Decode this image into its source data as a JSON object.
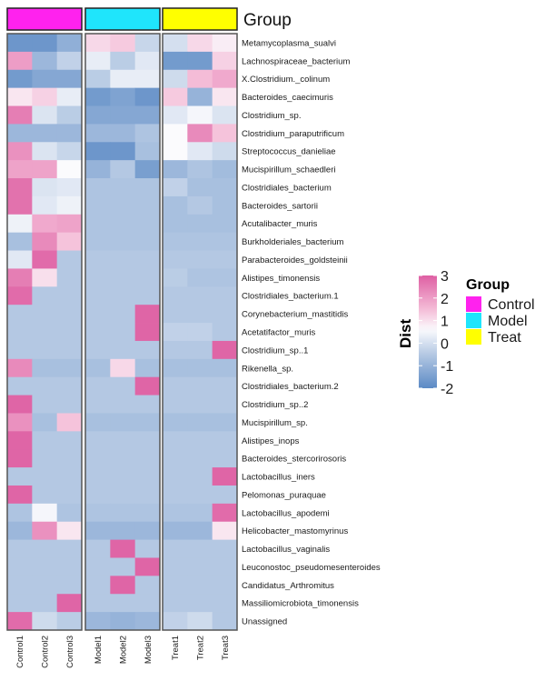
{
  "chart_data": {
    "type": "heatmap",
    "title": "",
    "annotation_title": "Group",
    "columns": [
      "Control1",
      "Control2",
      "Control3",
      "Model1",
      "Model2",
      "Model3",
      "Treat1",
      "Treat2",
      "Treat3"
    ],
    "column_groups": [
      "Control",
      "Control",
      "Control",
      "Model",
      "Model",
      "Model",
      "Treat",
      "Treat",
      "Treat"
    ],
    "group_splits": [
      {
        "name": "Control",
        "columns": [
          "Control1",
          "Control2",
          "Control3"
        ]
      },
      {
        "name": "Model",
        "columns": [
          "Model1",
          "Model2",
          "Model3"
        ]
      },
      {
        "name": "Treat",
        "columns": [
          "Treat1",
          "Treat2",
          "Treat3"
        ]
      }
    ],
    "rows": [
      "Metamycoplasma_sualvi",
      "Lachnospiraceae_bacterium",
      "X.Clostridium._colinum",
      "Bacteroides_caecimuris",
      "Clostridium_sp.",
      "Clostridium_paraputrificum",
      "Streptococcus_danieliae",
      "Mucispirillum_schaedleri",
      "Clostridiales_bacterium",
      "Bacteroides_sartorii",
      "Acutalibacter_muris",
      "Burkholderiales_bacterium",
      "Parabacteroides_goldsteinii",
      "Alistipes_timonensis",
      "Clostridiales_bacterium.1",
      "Corynebacterium_mastitidis",
      "Acetatifactor_muris",
      "Clostridium_sp..1",
      "Rikenella_sp.",
      "Clostridiales_bacterium.2",
      "Clostridium_sp..2",
      "Mucispirillum_sp.",
      "Alistipes_inops",
      "Bacteroides_stercorirosoris",
      "Lactobacillus_iners",
      "Pelomonas_puraquae",
      "Lactobacillus_apodemi",
      "Helicobacter_mastomyrinus",
      "Lactobacillus_vaginalis",
      "Leuconostoc_pseudomesenteroides",
      "Candidatus_Arthromitus",
      "Massiliomicrobiota_timonensis",
      "Unassigned"
    ],
    "values": [
      [
        -1.7,
        -1.7,
        -1.1,
        1.1,
        1.3,
        -0.2,
        0.0,
        1.1,
        0.8
      ],
      [
        2.0,
        -0.9,
        -0.3,
        0.3,
        -0.4,
        0.2,
        -1.6,
        -1.6,
        1.2
      ],
      [
        -1.6,
        -1.3,
        -1.3,
        -0.4,
        0.3,
        0.3,
        -0.1,
        1.5,
        1.8
      ],
      [
        0.9,
        1.2,
        0.3,
        -1.6,
        -1.4,
        -1.7,
        1.3,
        -1.0,
        0.9
      ],
      [
        2.5,
        0.1,
        -0.4,
        -1.3,
        -1.3,
        -1.3,
        0.2,
        0.5,
        0.1
      ],
      [
        -0.9,
        -0.9,
        -0.9,
        -0.9,
        -0.9,
        -0.6,
        0.6,
        2.3,
        1.4
      ],
      [
        2.2,
        0.1,
        -0.2,
        -1.7,
        -1.7,
        -0.7,
        0.6,
        0.2,
        -0.1
      ],
      [
        1.9,
        1.9,
        0.6,
        -1.0,
        -0.5,
        -1.5,
        -0.9,
        -0.6,
        -0.8
      ],
      [
        2.7,
        0.1,
        0.2,
        -0.6,
        -0.6,
        -0.6,
        -0.3,
        -0.7,
        -0.7
      ],
      [
        2.7,
        0.2,
        0.4,
        -0.6,
        -0.6,
        -0.6,
        -0.7,
        -0.5,
        -0.7
      ],
      [
        0.4,
        1.8,
        1.9,
        -0.6,
        -0.6,
        -0.6,
        -0.7,
        -0.7,
        -0.7
      ],
      [
        -0.7,
        2.3,
        1.4,
        -0.6,
        -0.6,
        -0.6,
        -0.6,
        -0.6,
        -0.6
      ],
      [
        0.2,
        2.8,
        -0.5,
        -0.5,
        -0.5,
        -0.5,
        -0.5,
        -0.5,
        -0.5
      ],
      [
        2.5,
        1.0,
        -0.5,
        -0.5,
        -0.5,
        -0.5,
        -0.4,
        -0.6,
        -0.6
      ],
      [
        2.8,
        -0.5,
        -0.5,
        -0.5,
        -0.5,
        -0.5,
        -0.5,
        -0.5,
        -0.5
      ],
      [
        -0.5,
        -0.5,
        -0.5,
        -0.5,
        -0.5,
        2.9,
        -0.5,
        -0.5,
        -0.5
      ],
      [
        -0.5,
        -0.5,
        -0.5,
        -0.5,
        -0.5,
        2.9,
        -0.3,
        -0.3,
        -0.5
      ],
      [
        -0.5,
        -0.5,
        -0.5,
        -0.5,
        -0.5,
        -0.5,
        -0.5,
        -0.5,
        2.9
      ],
      [
        2.3,
        -0.7,
        -0.7,
        -0.7,
        1.1,
        -0.7,
        -0.7,
        -0.7,
        -0.7
      ],
      [
        -0.5,
        -0.5,
        -0.5,
        -0.5,
        -0.5,
        2.9,
        -0.5,
        -0.5,
        -0.5
      ],
      [
        2.9,
        -0.5,
        -0.5,
        -0.5,
        -0.5,
        -0.5,
        -0.5,
        -0.5,
        -0.5
      ],
      [
        2.2,
        -0.7,
        1.4,
        -0.7,
        -0.7,
        -0.7,
        -0.7,
        -0.7,
        -0.7
      ],
      [
        2.9,
        -0.5,
        -0.5,
        -0.5,
        -0.5,
        -0.5,
        -0.5,
        -0.5,
        -0.5
      ],
      [
        2.9,
        -0.5,
        -0.5,
        -0.5,
        -0.5,
        -0.5,
        -0.5,
        -0.5,
        -0.5
      ],
      [
        -0.5,
        -0.5,
        -0.5,
        -0.5,
        -0.5,
        -0.5,
        -0.5,
        -0.5,
        2.9
      ],
      [
        2.9,
        -0.5,
        -0.5,
        -0.5,
        -0.5,
        -0.5,
        -0.5,
        -0.5,
        -0.5
      ],
      [
        -0.6,
        0.5,
        -0.6,
        -0.6,
        -0.6,
        -0.6,
        -0.6,
        -0.6,
        2.8
      ],
      [
        -0.9,
        2.2,
        0.9,
        -0.9,
        -0.9,
        -0.9,
        -0.9,
        -0.9,
        0.9
      ],
      [
        -0.5,
        -0.5,
        -0.5,
        -0.5,
        2.9,
        -0.5,
        -0.5,
        -0.5,
        -0.5
      ],
      [
        -0.5,
        -0.5,
        -0.5,
        -0.5,
        -0.5,
        2.9,
        -0.5,
        -0.5,
        -0.5
      ],
      [
        -0.5,
        -0.5,
        -0.5,
        -0.5,
        2.9,
        -0.5,
        -0.5,
        -0.5,
        -0.5
      ],
      [
        -0.5,
        -0.5,
        2.9,
        -0.5,
        -0.5,
        -0.5,
        -0.5,
        -0.5,
        -0.5
      ],
      [
        2.8,
        -0.1,
        -0.4,
        -0.9,
        -1.0,
        -0.9,
        -0.3,
        -0.1,
        -0.5
      ]
    ],
    "color_scale": {
      "title": "Dist",
      "min": -2,
      "max": 3,
      "ticks": [
        3,
        2,
        1,
        0,
        -1,
        -2
      ],
      "tick_labels": [
        "3",
        "2",
        "1",
        "0",
        "-1",
        "-2"
      ],
      "stops": [
        {
          "value": -2,
          "color": "#5b8ac5"
        },
        {
          "value": -0.5,
          "color": "#b4c8e3"
        },
        {
          "value": 0.6,
          "color": "#fbfbfd"
        },
        {
          "value": 1.5,
          "color": "#f4bcd7"
        },
        {
          "value": 3,
          "color": "#de5fa3"
        }
      ]
    },
    "group_legend": {
      "title": "Group",
      "items": [
        {
          "label": "Control",
          "color": "#ff22ee"
        },
        {
          "label": "Model",
          "color": "#1fe5fc"
        },
        {
          "label": "Treat",
          "color": "#ffff00"
        }
      ]
    },
    "legend_position": "right"
  }
}
